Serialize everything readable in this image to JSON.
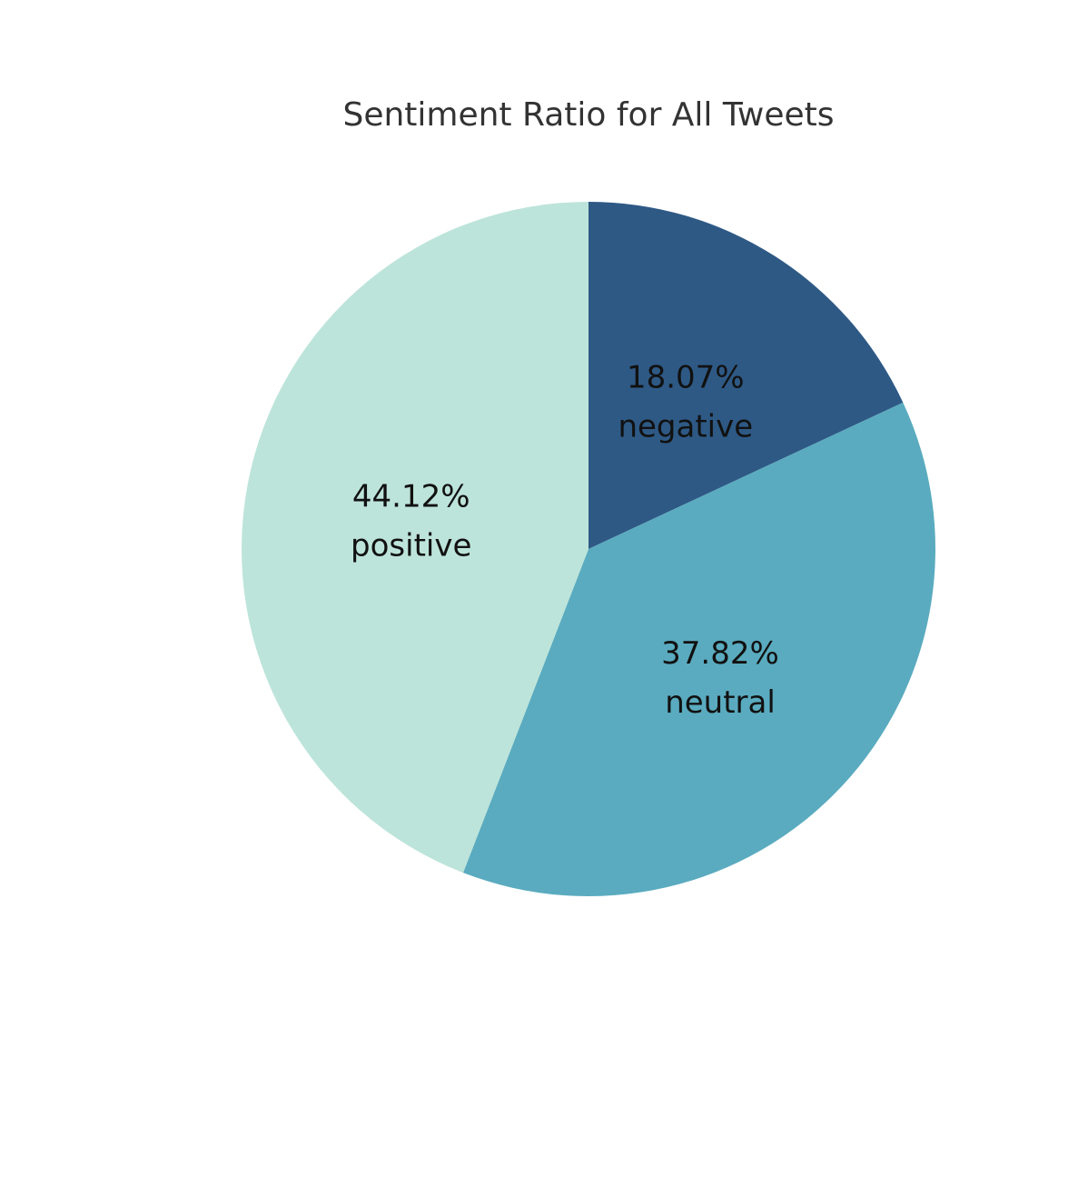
{
  "chart_data": {
    "type": "pie",
    "title": "Sentiment Ratio for All Tweets",
    "start": "12 o'clock",
    "direction": "clockwise",
    "slices": [
      {
        "label": "negative",
        "value": 18.07,
        "display": "18.07%",
        "color": "#2e5985"
      },
      {
        "label": "neutral",
        "value": 37.82,
        "display": "37.82%",
        "color": "#5aabbf"
      },
      {
        "label": "positive",
        "value": 44.12,
        "display": "44.12%",
        "color": "#bde4da"
      }
    ],
    "label_color": "#111111"
  }
}
